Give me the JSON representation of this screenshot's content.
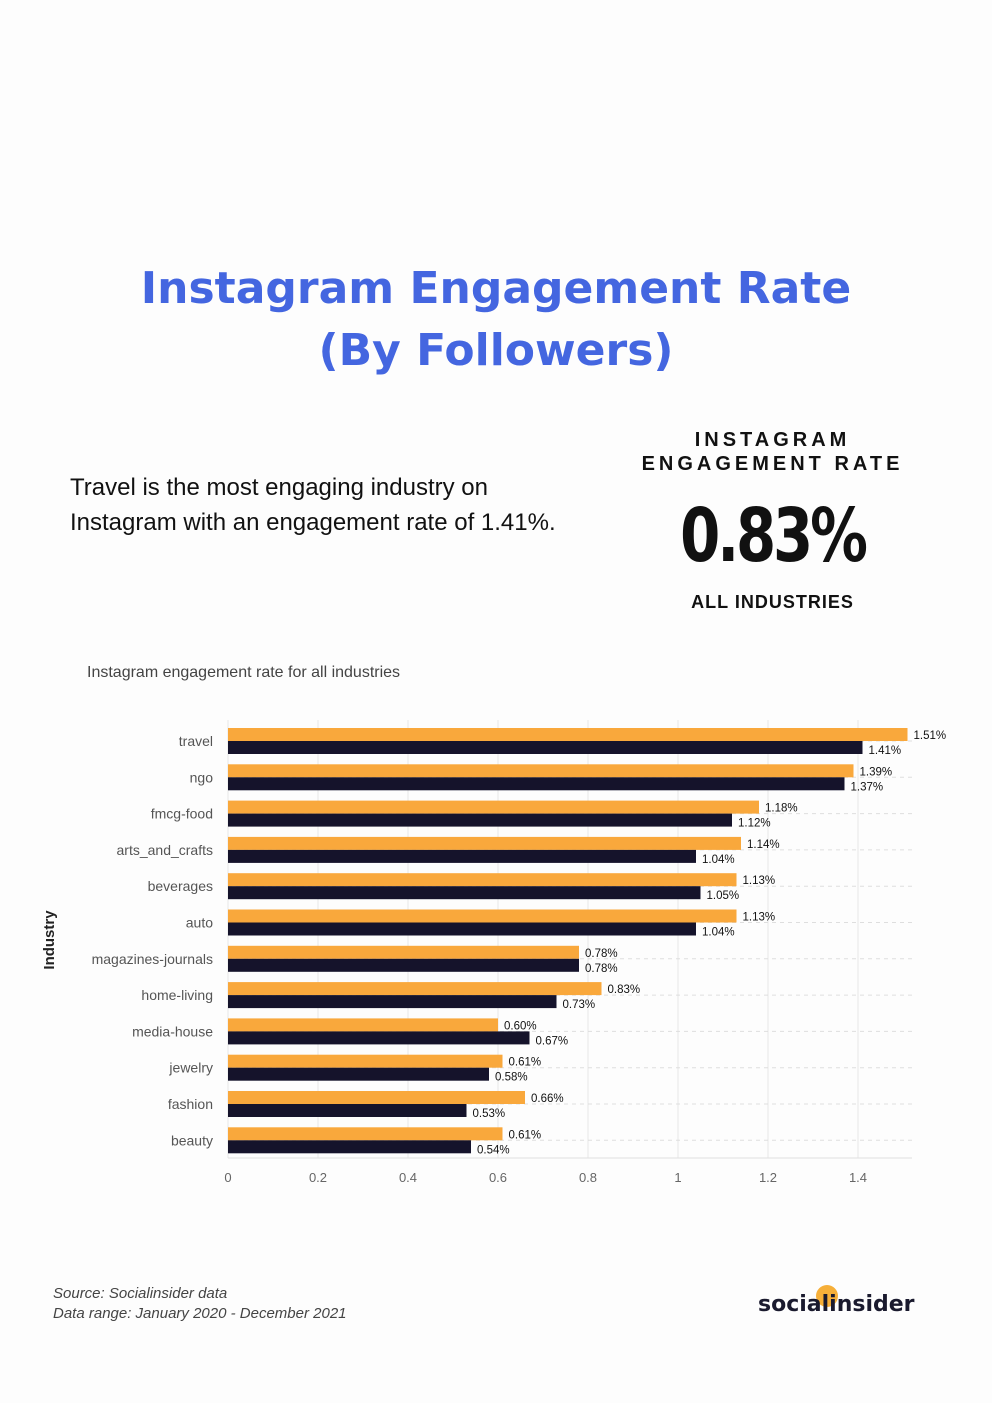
{
  "title": {
    "line1": "Instagram Engagement Rate",
    "line2": "(By Followers)"
  },
  "headline": {
    "line1": "Travel is the most engaging industry on",
    "line2": "Instagram with an engagement rate of 1.41%."
  },
  "stat": {
    "label_line1": "INSTAGRAM",
    "label_line2": "ENGAGEMENT RATE",
    "value": "0.83%",
    "sub": "ALL INDUSTRIES"
  },
  "colors": {
    "accent": "#4466e0",
    "orange": "#f9a83c",
    "navy": "#15132b"
  },
  "chart_data": {
    "type": "bar",
    "orientation": "horizontal",
    "title": "Instagram engagement rate for all industries",
    "ylabel": "Industry",
    "xlabel": "",
    "xlim": [
      0,
      1.52
    ],
    "xticks": [
      "0",
      "0.2",
      "0.4",
      "0.6",
      "0.8",
      "1",
      "1.2",
      "1.4"
    ],
    "xtick_values": [
      0,
      0.2,
      0.4,
      0.6,
      0.8,
      1,
      1.2,
      1.4
    ],
    "categories": [
      "travel",
      "ngo",
      "fmcg-food",
      "arts_and_crafts",
      "beverages",
      "auto",
      "magazines-journals",
      "home-living",
      "media-house",
      "jewelry",
      "fashion",
      "beauty"
    ],
    "series": [
      {
        "name": "series-1",
        "color": "#f9a83c",
        "values": [
          1.51,
          1.39,
          1.18,
          1.14,
          1.13,
          1.13,
          0.78,
          0.83,
          0.6,
          0.61,
          0.66,
          0.61
        ],
        "labels": [
          "1.51%",
          "1.39%",
          "1.18%",
          "1.14%",
          "1.13%",
          "1.13%",
          "0.78%",
          "0.83%",
          "0.60%",
          "0.61%",
          "0.66%",
          "0.61%"
        ]
      },
      {
        "name": "series-2",
        "color": "#15132b",
        "values": [
          1.41,
          1.37,
          1.12,
          1.04,
          1.05,
          1.04,
          0.78,
          0.73,
          0.67,
          0.58,
          0.53,
          0.54
        ],
        "labels": [
          "1.41%",
          "1.37%",
          "1.12%",
          "1.04%",
          "1.05%",
          "1.04%",
          "0.78%",
          "0.73%",
          "0.67%",
          "0.58%",
          "0.53%",
          "0.54%"
        ]
      }
    ]
  },
  "source": {
    "line1": "Source: Socialinsider data",
    "line2": "Data range: January 2020 - December 2021"
  },
  "logo": {
    "text": "socialinsider"
  }
}
